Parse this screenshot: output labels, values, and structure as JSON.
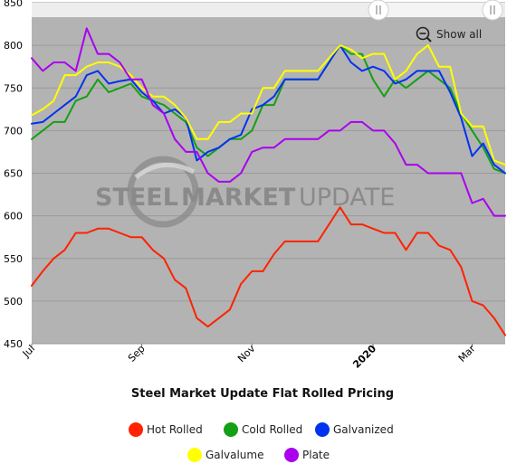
{
  "chart_data": {
    "type": "line",
    "title": "Steel Market Update Flat Rolled Pricing",
    "xlabel": "",
    "ylabel": "",
    "ylim": [
      450,
      850
    ],
    "yticks": [
      450,
      500,
      550,
      600,
      650,
      700,
      750,
      800,
      850
    ],
    "xticks": [
      {
        "label": "Jul",
        "week": 0,
        "bold": false
      },
      {
        "label": "Sep",
        "week": 10,
        "bold": false
      },
      {
        "label": "Nov",
        "week": 20,
        "bold": false
      },
      {
        "label": "2020",
        "week": 31,
        "bold": true
      },
      {
        "label": "Mar",
        "week": 40,
        "bold": false
      }
    ],
    "grid": true,
    "legend_position": "bottom",
    "colors": {
      "plot_background": "#b3b3b3",
      "gridline": "#9a9a9a"
    },
    "series": [
      {
        "name": "Hot Rolled",
        "color": "#ff2200",
        "values": [
          518,
          535,
          550,
          560,
          580,
          580,
          585,
          585,
          580,
          575,
          575,
          560,
          550,
          525,
          515,
          480,
          470,
          480,
          490,
          520,
          535,
          535,
          555,
          570,
          570,
          570,
          570,
          590,
          610,
          590,
          590,
          585,
          580,
          580,
          560,
          580,
          580,
          565,
          560,
          540,
          500,
          495,
          480,
          460
        ]
      },
      {
        "name": "Cold Rolled",
        "color": "#14a014",
        "values": [
          690,
          700,
          710,
          710,
          735,
          740,
          760,
          745,
          750,
          755,
          740,
          735,
          730,
          720,
          710,
          680,
          670,
          680,
          690,
          690,
          700,
          730,
          730,
          760,
          760,
          760,
          760,
          780,
          800,
          790,
          790,
          760,
          740,
          760,
          750,
          760,
          770,
          760,
          750,
          720,
          700,
          680,
          655,
          650
        ]
      },
      {
        "name": "Galvanized",
        "color": "#0033ee",
        "values": [
          708,
          710,
          720,
          730,
          740,
          765,
          770,
          755,
          758,
          760,
          745,
          735,
          720,
          725,
          715,
          665,
          675,
          680,
          690,
          695,
          725,
          730,
          740,
          760,
          760,
          760,
          760,
          780,
          800,
          780,
          770,
          775,
          770,
          755,
          760,
          770,
          770,
          770,
          745,
          715,
          670,
          685,
          660,
          650
        ]
      },
      {
        "name": "Galvalume",
        "color": "#ffff00",
        "values": [
          718,
          725,
          735,
          765,
          765,
          775,
          780,
          780,
          775,
          765,
          750,
          740,
          740,
          730,
          715,
          690,
          690,
          710,
          710,
          720,
          720,
          750,
          750,
          770,
          770,
          770,
          770,
          785,
          800,
          795,
          785,
          790,
          790,
          760,
          770,
          790,
          800,
          775,
          775,
          720,
          705,
          705,
          665,
          660
        ]
      },
      {
        "name": "Plate",
        "color": "#aa00ee",
        "values": [
          785,
          770,
          780,
          780,
          770,
          820,
          790,
          790,
          780,
          760,
          760,
          730,
          720,
          690,
          675,
          675,
          650,
          640,
          640,
          650,
          675,
          680,
          680,
          690,
          690,
          690,
          690,
          700,
          700,
          710,
          710,
          700,
          700,
          685,
          660,
          660,
          650,
          650,
          650,
          650,
          615,
          620,
          600,
          600
        ]
      }
    ]
  },
  "controls": {
    "show_all_label": "Show all",
    "zoom_out_icon": "zoom-out-icon",
    "scrollbar_handle_icon": "grip-lines-icon"
  },
  "watermark": {
    "text_steel": "STEEL",
    "text_market": "MARKET",
    "text_update": "UPDATE",
    "logo_icon": "swoosh-logo-icon"
  }
}
